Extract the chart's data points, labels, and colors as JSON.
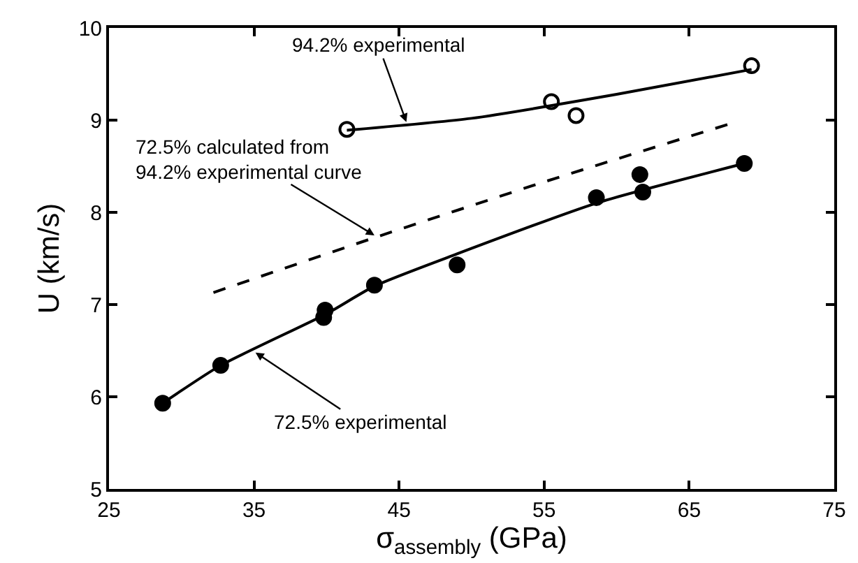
{
  "chart_data": {
    "type": "scatter",
    "xlabel": "σ$_{assembly}$ (GPa)",
    "ylabel": "U (km/s)",
    "xlim": [
      25,
      75
    ],
    "xticks": [
      25,
      35,
      45,
      55,
      65,
      75
    ],
    "ylim": [
      5,
      10
    ],
    "yticks": [
      5,
      6,
      7,
      8,
      9,
      10
    ],
    "series": [
      {
        "marker": "circle-open",
        "color": "#000000",
        "x": [
          41.4,
          55.5,
          57.2,
          69.3
        ],
        "values": [
          8.9,
          9.2,
          9.05,
          9.59
        ]
      },
      {
        "marker": "circle",
        "color": "#000000",
        "x": [
          28.7,
          32.7,
          39.8,
          39.9,
          43.3,
          49.0,
          58.6,
          61.6,
          61.8,
          68.8
        ],
        "values": [
          5.93,
          6.34,
          6.86,
          6.94,
          7.21,
          7.43,
          8.16,
          8.41,
          8.22,
          8.53
        ]
      },
      {
        "type": "line",
        "line_style": "solid",
        "color": "#000000",
        "x": [
          41.4,
          50,
          60,
          69.3
        ],
        "values": [
          8.89,
          9.02,
          9.28,
          9.55
        ]
      },
      {
        "type": "line",
        "line_style": "dashed",
        "color": "#000000",
        "x": [
          32.2,
          43.2,
          55,
          67.8
        ],
        "values": [
          7.13,
          7.72,
          8.33,
          8.96
        ]
      },
      {
        "type": "line",
        "line_style": "solid",
        "color": "#000000",
        "x": [
          28.7,
          32.7,
          40,
          43.3,
          49,
          58.6,
          68.8
        ],
        "values": [
          5.93,
          6.34,
          6.9,
          7.2,
          7.55,
          8.1,
          8.53
        ]
      }
    ],
    "annotations": [
      {
        "text": "94.2% experimental",
        "x": 45.5,
        "y": 8.98
      },
      {
        "text": "72.5% calculated from\n94.2% experimental curve",
        "x": 43.3,
        "y": 7.75
      },
      {
        "text": "72.5% experimental",
        "x": 35.1,
        "y": 6.48
      }
    ]
  }
}
